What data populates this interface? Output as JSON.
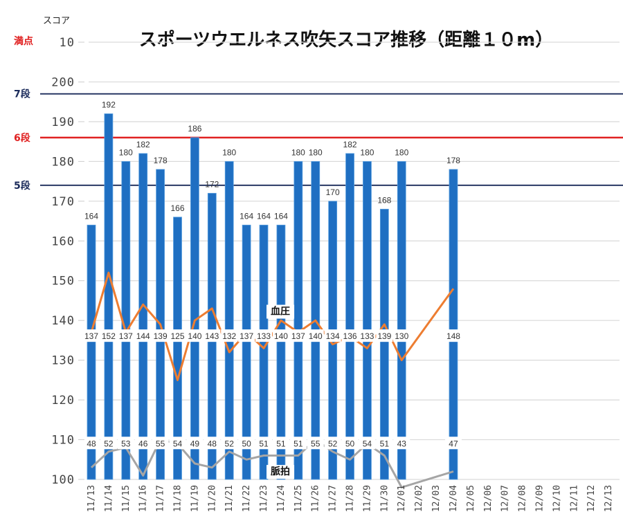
{
  "chart_data": {
    "type": "bar",
    "title": "スポーツウエルネス吹矢スコア推移（距離１０m）",
    "ylabel": "スコア",
    "ylim": [
      100,
      210
    ],
    "y_tick_labels": [
      "100",
      "110",
      "120",
      "130",
      "140",
      "150",
      "160",
      "170",
      "180",
      "190",
      "200",
      "10"
    ],
    "grid": true,
    "categories": [
      "11/13",
      "11/14",
      "11/15",
      "11/16",
      "11/17",
      "11/18",
      "11/19",
      "11/20",
      "11/21",
      "11/22",
      "11/23",
      "11/24",
      "11/25",
      "11/26",
      "11/27",
      "11/28",
      "11/29",
      "11/30",
      "12/01",
      "12/02",
      "12/03",
      "12/04",
      "12/05",
      "12/06",
      "12/07",
      "12/08",
      "12/09",
      "12/10",
      "12/11",
      "12/12",
      "12/13"
    ],
    "series": [
      {
        "name": "",
        "kind": "bar",
        "color": "#1f6fc2",
        "values": [
          164,
          192,
          180,
          182,
          178,
          166,
          186,
          172,
          180,
          164,
          164,
          164,
          180,
          180,
          170,
          182,
          180,
          168,
          180,
          null,
          null,
          178,
          null,
          null,
          null,
          null,
          null,
          null,
          null,
          null,
          null
        ]
      },
      {
        "name": "血圧",
        "kind": "line",
        "color": "#ed7d31",
        "values": [
          137,
          152,
          137,
          144,
          139,
          125,
          140,
          143,
          132,
          137,
          133,
          140,
          137,
          140,
          134,
          136,
          133,
          139,
          130,
          null,
          null,
          148,
          null,
          null,
          null,
          null,
          null,
          null,
          null,
          null,
          null
        ]
      },
      {
        "name": "脈拍",
        "kind": "line",
        "color": "#a5a5a5",
        "values": [
          48,
          52,
          53,
          46,
          55,
          54,
          49,
          48,
          52,
          50,
          51,
          51,
          51,
          55,
          52,
          50,
          54,
          51,
          43,
          null,
          null,
          47,
          null,
          null,
          null,
          null,
          null,
          null,
          null,
          null,
          null
        ]
      }
    ],
    "reference_lines": [
      {
        "label": "満点",
        "value": 210,
        "color": "#e02020",
        "drawn": false
      },
      {
        "label": "7段",
        "value": 197,
        "color": "#1a2a5a",
        "drawn": true
      },
      {
        "label": "6段",
        "value": 186,
        "color": "#e02020",
        "drawn": true
      },
      {
        "label": "5段",
        "value": 174,
        "color": "#1a2a5a",
        "drawn": true
      }
    ]
  }
}
